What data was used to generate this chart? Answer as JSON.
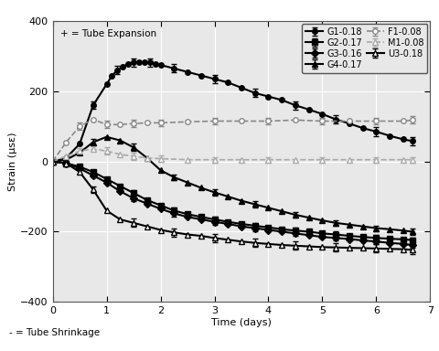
{
  "title": "",
  "xlabel": "Time (days)",
  "ylabel": "Strain (μsε)",
  "xlim": [
    0,
    7
  ],
  "ylim": [
    -400,
    400
  ],
  "xticks": [
    0,
    1,
    2,
    3,
    4,
    5,
    6,
    7
  ],
  "yticks": [
    -400,
    -200,
    0,
    200,
    400
  ],
  "top_label": "+ = Tube Expansion",
  "bottom_label": "- = Tube Shrinkage",
  "series": {
    "G1": {
      "label": "G1-0.18",
      "color": "#000000",
      "linestyle": "-",
      "marker": "o",
      "markerfacecolor": "#000000",
      "markersize": 4,
      "linewidth": 1.5,
      "x": [
        0.0,
        0.25,
        0.5,
        0.75,
        1.0,
        1.1,
        1.2,
        1.3,
        1.4,
        1.5,
        1.6,
        1.7,
        1.8,
        1.9,
        2.0,
        2.25,
        2.5,
        2.75,
        3.0,
        3.25,
        3.5,
        3.75,
        4.0,
        4.25,
        4.5,
        4.75,
        5.0,
        5.25,
        5.5,
        5.75,
        6.0,
        6.25,
        6.5,
        6.67
      ],
      "y": [
        0,
        10,
        50,
        160,
        220,
        245,
        260,
        270,
        278,
        282,
        282,
        283,
        282,
        279,
        275,
        265,
        255,
        245,
        235,
        225,
        210,
        195,
        185,
        175,
        160,
        148,
        135,
        120,
        108,
        95,
        85,
        73,
        63,
        58
      ],
      "yerr": [
        5,
        5,
        8,
        10,
        12,
        12,
        12,
        12,
        12,
        12,
        12,
        12,
        12,
        12,
        12,
        12,
        12,
        12,
        12,
        12,
        12,
        12,
        12,
        12,
        12,
        12,
        12,
        12,
        12,
        12,
        12,
        12,
        12,
        12
      ],
      "errorevery": 3
    },
    "G2": {
      "label": "G2-0.17",
      "color": "#000000",
      "linestyle": "-",
      "marker": "s",
      "markerfacecolor": "#000000",
      "markersize": 4,
      "linewidth": 1.5,
      "x": [
        0.0,
        0.25,
        0.5,
        0.75,
        1.0,
        1.25,
        1.5,
        1.75,
        2.0,
        2.25,
        2.5,
        2.75,
        3.0,
        3.25,
        3.5,
        3.75,
        4.0,
        4.25,
        4.5,
        4.75,
        5.0,
        5.25,
        5.5,
        5.75,
        6.0,
        6.25,
        6.5,
        6.67
      ],
      "y": [
        0,
        -5,
        -15,
        -30,
        -50,
        -70,
        -90,
        -110,
        -125,
        -140,
        -150,
        -158,
        -165,
        -172,
        -178,
        -183,
        -188,
        -193,
        -197,
        -200,
        -205,
        -208,
        -212,
        -215,
        -218,
        -220,
        -222,
        -224
      ],
      "yerr": [
        5,
        5,
        5,
        5,
        8,
        8,
        8,
        8,
        8,
        8,
        8,
        8,
        8,
        8,
        8,
        8,
        8,
        8,
        8,
        8,
        8,
        8,
        8,
        8,
        8,
        8,
        8,
        8
      ],
      "errorevery": 3
    },
    "G3": {
      "label": "G3-0.16",
      "color": "#000000",
      "linestyle": "-",
      "marker": "D",
      "markerfacecolor": "#000000",
      "markersize": 4,
      "linewidth": 1.5,
      "x": [
        0.0,
        0.25,
        0.5,
        0.75,
        1.0,
        1.25,
        1.5,
        1.75,
        2.0,
        2.25,
        2.5,
        2.75,
        3.0,
        3.25,
        3.5,
        3.75,
        4.0,
        4.25,
        4.5,
        4.75,
        5.0,
        5.25,
        5.5,
        5.75,
        6.0,
        6.25,
        6.5,
        6.67
      ],
      "y": [
        0,
        -5,
        -20,
        -40,
        -60,
        -85,
        -105,
        -120,
        -135,
        -148,
        -158,
        -165,
        -172,
        -178,
        -185,
        -190,
        -195,
        -200,
        -205,
        -210,
        -215,
        -218,
        -221,
        -225,
        -228,
        -232,
        -235,
        -238
      ],
      "yerr": [
        5,
        5,
        5,
        5,
        8,
        8,
        8,
        8,
        8,
        8,
        8,
        8,
        8,
        8,
        8,
        8,
        8,
        8,
        8,
        8,
        8,
        8,
        8,
        8,
        8,
        8,
        8,
        8
      ],
      "errorevery": 3
    },
    "G4": {
      "label": "G4-0.17",
      "color": "#000000",
      "linestyle": "-",
      "marker": "^",
      "markerfacecolor": "#000000",
      "markersize": 4,
      "linewidth": 1.5,
      "x": [
        0.0,
        0.25,
        0.5,
        0.75,
        1.0,
        1.25,
        1.5,
        1.75,
        2.0,
        2.25,
        2.5,
        2.75,
        3.0,
        3.25,
        3.5,
        3.75,
        4.0,
        4.25,
        4.5,
        4.75,
        5.0,
        5.25,
        5.5,
        5.75,
        6.0,
        6.25,
        6.5,
        6.67
      ],
      "y": [
        0,
        5,
        25,
        55,
        70,
        60,
        40,
        10,
        -25,
        -45,
        -60,
        -75,
        -88,
        -100,
        -112,
        -122,
        -132,
        -142,
        -152,
        -160,
        -168,
        -175,
        -180,
        -185,
        -190,
        -193,
        -197,
        -200
      ],
      "yerr": [
        5,
        5,
        8,
        8,
        10,
        10,
        10,
        10,
        8,
        8,
        8,
        8,
        8,
        8,
        8,
        8,
        8,
        8,
        8,
        8,
        8,
        8,
        8,
        8,
        8,
        8,
        8,
        8
      ],
      "errorevery": 3
    },
    "F1": {
      "label": "F1-0.08",
      "color": "#888888",
      "linestyle": "--",
      "marker": "o",
      "markerfacecolor": "#ffffff",
      "markersize": 4,
      "linewidth": 1.2,
      "x": [
        0.0,
        0.25,
        0.5,
        0.75,
        1.0,
        1.25,
        1.5,
        1.75,
        2.0,
        2.5,
        3.0,
        3.5,
        4.0,
        4.5,
        5.0,
        5.5,
        6.0,
        6.5,
        6.67
      ],
      "y": [
        0,
        55,
        100,
        120,
        105,
        105,
        108,
        110,
        110,
        113,
        115,
        115,
        115,
        118,
        115,
        115,
        115,
        115,
        118
      ],
      "yerr": [
        5,
        8,
        10,
        10,
        10,
        10,
        10,
        10,
        10,
        10,
        10,
        10,
        10,
        10,
        10,
        10,
        10,
        10,
        10
      ],
      "errorevery": 2
    },
    "M1": {
      "label": "M1-0.08",
      "color": "#aaaaaa",
      "linestyle": "--",
      "marker": "^",
      "markerfacecolor": "#ffffff",
      "markersize": 4,
      "linewidth": 1.2,
      "x": [
        0.0,
        0.25,
        0.5,
        0.75,
        1.0,
        1.25,
        1.5,
        1.75,
        2.0,
        2.5,
        3.0,
        3.5,
        4.0,
        4.5,
        5.0,
        5.5,
        6.0,
        6.5,
        6.67
      ],
      "y": [
        0,
        15,
        30,
        35,
        30,
        20,
        15,
        10,
        8,
        5,
        5,
        5,
        5,
        5,
        5,
        5,
        5,
        5,
        5
      ],
      "yerr": [
        5,
        5,
        8,
        8,
        10,
        10,
        10,
        8,
        8,
        8,
        8,
        8,
        8,
        8,
        8,
        8,
        8,
        8,
        8
      ],
      "errorevery": 2
    },
    "U3": {
      "label": "U3-0.18",
      "color": "#000000",
      "linestyle": "-",
      "marker": "^",
      "markerfacecolor": "#ffffff",
      "markersize": 4,
      "linewidth": 1.5,
      "x": [
        0.0,
        0.25,
        0.5,
        0.75,
        1.0,
        1.25,
        1.5,
        1.75,
        2.0,
        2.25,
        2.5,
        2.75,
        3.0,
        3.25,
        3.5,
        3.75,
        4.0,
        4.25,
        4.5,
        4.75,
        5.0,
        5.25,
        5.5,
        5.75,
        6.0,
        6.25,
        6.5,
        6.67
      ],
      "y": [
        0,
        -5,
        -30,
        -80,
        -140,
        -165,
        -175,
        -185,
        -195,
        -202,
        -208,
        -212,
        -218,
        -223,
        -228,
        -232,
        -235,
        -238,
        -240,
        -242,
        -244,
        -245,
        -246,
        -247,
        -248,
        -249,
        -250,
        -252
      ],
      "yerr": [
        5,
        5,
        8,
        10,
        12,
        12,
        12,
        12,
        12,
        12,
        12,
        12,
        12,
        12,
        12,
        12,
        12,
        12,
        12,
        12,
        12,
        12,
        12,
        12,
        12,
        12,
        12,
        12
      ],
      "errorevery": 3
    }
  },
  "legend_order": [
    "G1",
    "G2",
    "G3",
    "G4",
    "F1",
    "M1",
    "U3"
  ],
  "plot_bgcolor": "#e8e8e8",
  "fig_bgcolor": "#ffffff",
  "grid_color": "#ffffff"
}
